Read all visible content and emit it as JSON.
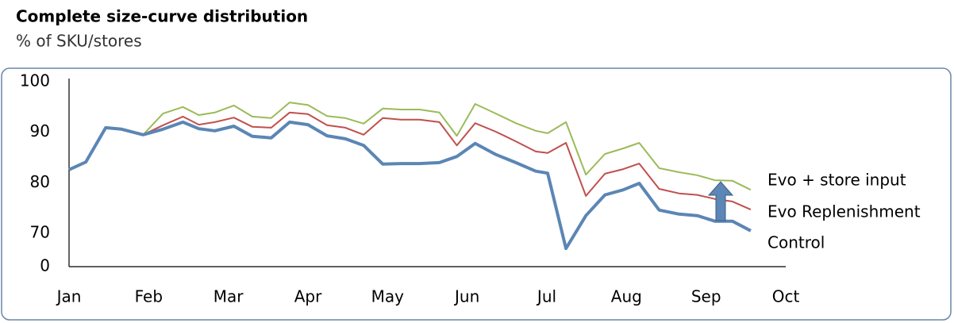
{
  "chart_data": {
    "type": "line",
    "title": "Complete size-curve distribution",
    "subtitle": "% of SKU/stores",
    "x": [
      0,
      0.21,
      0.46,
      0.66,
      0.93,
      1.18,
      1.43,
      1.63,
      1.83,
      2.07,
      2.3,
      2.54,
      2.77,
      3.0,
      3.24,
      3.47,
      3.7,
      3.94,
      4.17,
      4.4,
      4.65,
      4.87,
      5.1,
      5.36,
      5.61,
      5.86,
      6.01,
      6.24,
      6.49,
      6.73,
      6.96,
      7.16,
      7.41,
      7.66,
      7.89,
      8.11,
      8.33,
      8.56
    ],
    "series": [
      {
        "name": "Evo + store input",
        "color": "#9bbb59",
        "width": 2,
        "values": [
          82.6,
          84.1,
          90.9,
          90.6,
          89.5,
          93.7,
          95.0,
          93.4,
          93.9,
          95.3,
          93.1,
          92.8,
          95.9,
          95.4,
          93.2,
          92.8,
          91.7,
          94.7,
          94.5,
          94.5,
          93.9,
          89.3,
          95.6,
          93.7,
          91.8,
          90.3,
          89.8,
          92.0,
          81.6,
          85.7,
          86.8,
          87.9,
          82.9,
          82.1,
          81.5,
          80.5,
          80.4,
          78.6
        ]
      },
      {
        "name": "Evo Replenishment",
        "color": "#c0504d",
        "width": 2,
        "values": [
          82.6,
          84.1,
          90.9,
          90.6,
          89.5,
          91.4,
          93.1,
          91.5,
          92.0,
          92.9,
          91.1,
          90.9,
          93.9,
          93.6,
          91.4,
          90.9,
          89.5,
          92.8,
          92.5,
          92.5,
          92.0,
          87.4,
          91.8,
          90.1,
          88.2,
          86.2,
          85.9,
          87.9,
          77.4,
          81.8,
          82.7,
          83.8,
          78.8,
          77.9,
          77.6,
          76.8,
          76.3,
          74.7
        ]
      },
      {
        "name": "Control",
        "color": "#5b86b5",
        "width": 4,
        "values": [
          82.6,
          84.1,
          90.9,
          90.6,
          89.5,
          90.6,
          92.0,
          90.7,
          90.3,
          91.2,
          89.2,
          88.9,
          92.0,
          91.5,
          89.3,
          88.7,
          87.4,
          83.7,
          83.8,
          83.8,
          84.0,
          85.2,
          87.8,
          85.6,
          84.0,
          82.3,
          81.9,
          67.0,
          73.5,
          77.6,
          78.6,
          79.9,
          74.6,
          73.8,
          73.5,
          72.4,
          72.4,
          70.5
        ]
      }
    ],
    "xlim": [
      0,
      9
    ],
    "xticks": [
      {
        "value": 0,
        "label": "Jan"
      },
      {
        "value": 1,
        "label": "Feb"
      },
      {
        "value": 2,
        "label": "Mar"
      },
      {
        "value": 3,
        "label": "Apr"
      },
      {
        "value": 4,
        "label": "May"
      },
      {
        "value": 5,
        "label": "Jun"
      },
      {
        "value": 6,
        "label": "Jul"
      },
      {
        "value": 7,
        "label": "Aug"
      },
      {
        "value": 8,
        "label": "Sep"
      },
      {
        "value": 9,
        "label": "Oct"
      }
    ],
    "ylim": [
      0,
      100
    ],
    "yticks": [
      100,
      90,
      80,
      70,
      0
    ],
    "axis_break": true
  }
}
